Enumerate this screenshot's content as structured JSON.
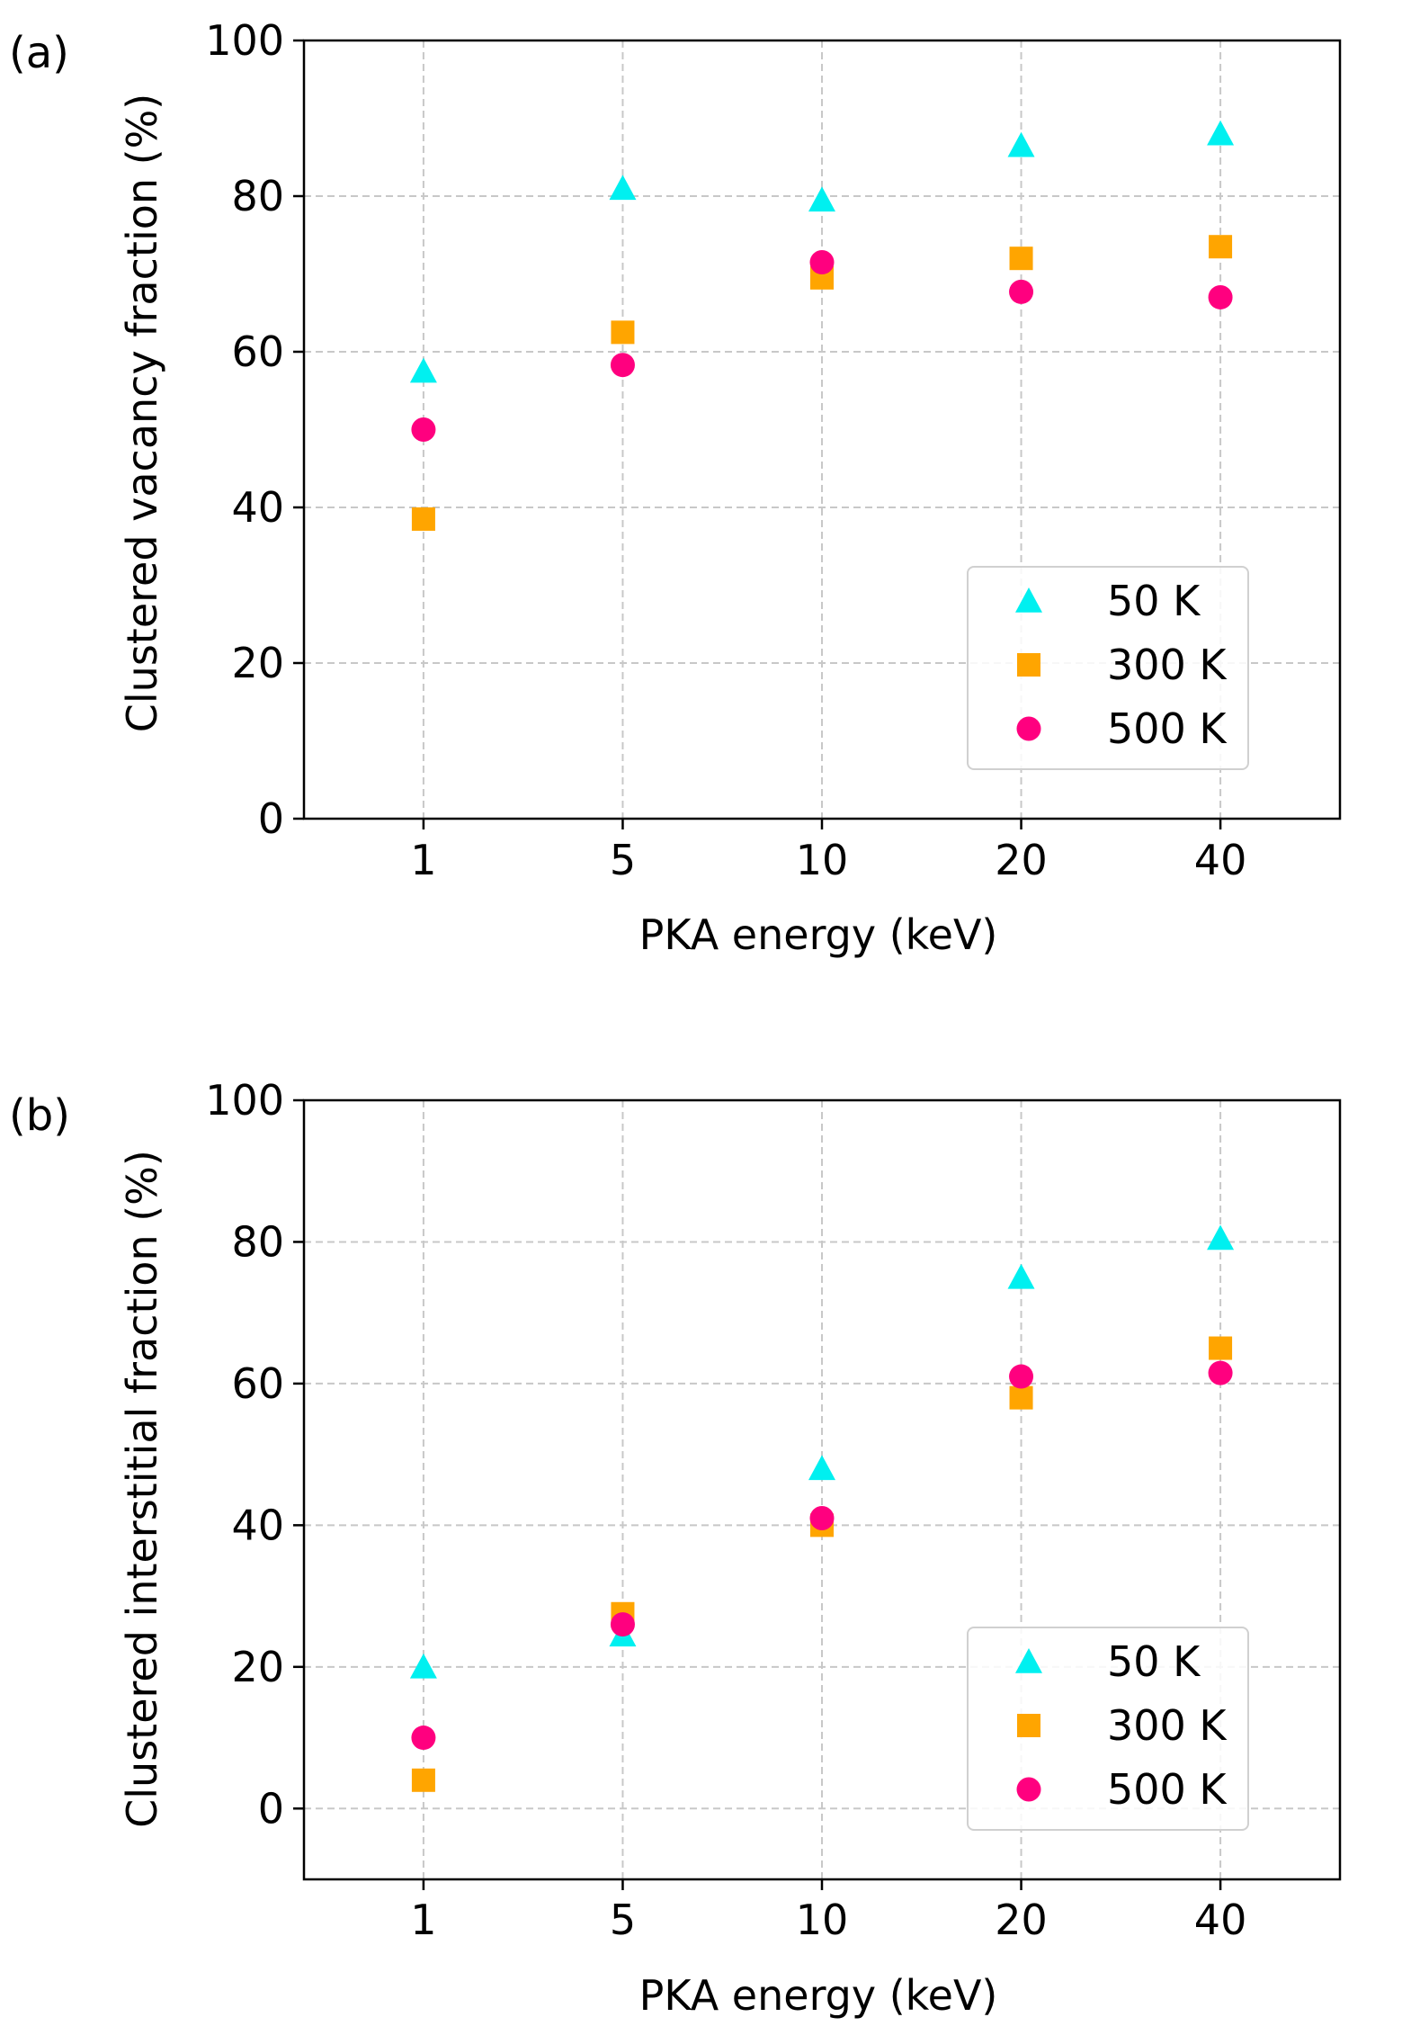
{
  "chart_data": [
    {
      "type": "scatter",
      "panel_label": "(a)",
      "xlabel": "PKA energy (keV)",
      "ylabel": "Clustered vacancy fraction (%)",
      "categories": [
        "1",
        "5",
        "10",
        "20",
        "40"
      ],
      "ylim": [
        0,
        100
      ],
      "yticks": [
        0,
        20,
        40,
        60,
        80,
        100
      ],
      "grid": true,
      "legend_position": "lower-right",
      "series": [
        {
          "name": "50 K",
          "marker": "triangle",
          "color": "#00f0f0",
          "values": [
            57.5,
            81,
            79.5,
            86.5,
            88
          ]
        },
        {
          "name": "300 K",
          "marker": "square",
          "color": "#ffa500",
          "values": [
            38.5,
            62.5,
            69.5,
            72,
            73.5
          ]
        },
        {
          "name": "500 K",
          "marker": "circle",
          "color": "#ff007f",
          "values": [
            50,
            58.3,
            71.5,
            67.7,
            67
          ]
        }
      ]
    },
    {
      "type": "scatter",
      "panel_label": "(b)",
      "xlabel": "PKA energy (keV)",
      "ylabel": "Clustered interstitial fraction (%)",
      "categories": [
        "1",
        "5",
        "10",
        "20",
        "40"
      ],
      "ylim": [
        -10,
        100
      ],
      "yticks": [
        0,
        20,
        40,
        60,
        80,
        100
      ],
      "grid": true,
      "legend_position": "lower-right",
      "series": [
        {
          "name": "50 K",
          "marker": "triangle",
          "color": "#00f0f0",
          "values": [
            20,
            24.5,
            48,
            75,
            80.5
          ]
        },
        {
          "name": "300 K",
          "marker": "square",
          "color": "#ffa500",
          "values": [
            4,
            27.5,
            40,
            58,
            65
          ]
        },
        {
          "name": "500 K",
          "marker": "circle",
          "color": "#ff007f",
          "values": [
            10,
            26,
            41,
            61,
            61.5
          ]
        }
      ]
    }
  ]
}
